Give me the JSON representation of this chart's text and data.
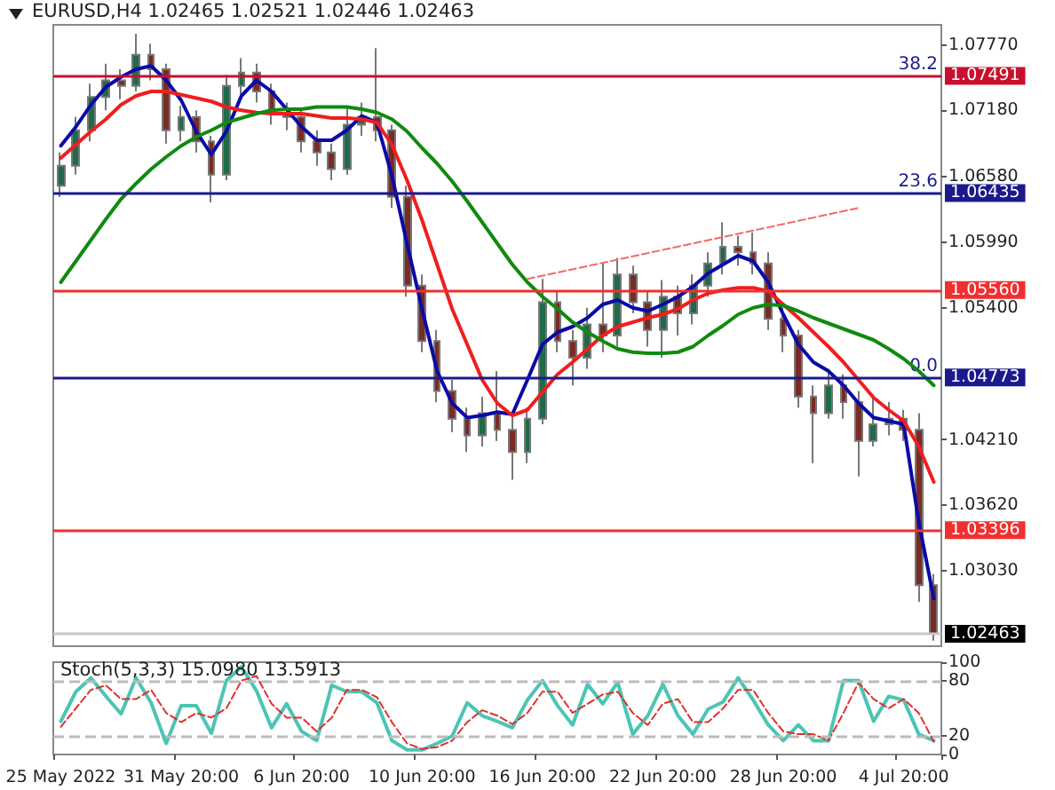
{
  "chart_data": [
    {
      "type": "candlestick",
      "title": "EURUSD,H4 1.02465 1.02521 1.02446 1.02463",
      "tick_labels": "y",
      "marker": "none",
      "categories": [
        null,
        null,
        null,
        null,
        null,
        null,
        null,
        null,
        null,
        null,
        null,
        null,
        null,
        null,
        null,
        null,
        null,
        null,
        null,
        null,
        null,
        null,
        null,
        null,
        null,
        null,
        null,
        null,
        null,
        null,
        null,
        null,
        null,
        null,
        null,
        null,
        null,
        null,
        null,
        null,
        null,
        null,
        null,
        null,
        null,
        null,
        null,
        null,
        null,
        null,
        null,
        null,
        null,
        null,
        null,
        null,
        null,
        null,
        null
      ],
      "ohlc": [
        [
          1.065,
          1.068,
          1.064,
          1.0668
        ],
        [
          1.0668,
          1.0712,
          1.066,
          1.07
        ],
        [
          1.07,
          1.0742,
          1.069,
          1.073
        ],
        [
          1.073,
          1.076,
          1.0718,
          1.0745
        ],
        [
          1.0745,
          1.0755,
          1.0728,
          1.074
        ],
        [
          1.074,
          1.0787,
          1.0735,
          1.0768
        ],
        [
          1.0768,
          1.0778,
          1.0745,
          1.0755
        ],
        [
          1.0755,
          1.076,
          1.0688,
          1.07
        ],
        [
          1.07,
          1.0722,
          1.069,
          1.0712
        ],
        [
          1.0712,
          1.0718,
          1.068,
          1.069
        ],
        [
          1.069,
          1.0695,
          1.0635,
          1.066
        ],
        [
          1.066,
          1.075,
          1.0655,
          1.074
        ],
        [
          1.074,
          1.0765,
          1.0732,
          1.0752
        ],
        [
          1.0752,
          1.076,
          1.0725,
          1.0735
        ],
        [
          1.0735,
          1.0742,
          1.0705,
          1.0715
        ],
        [
          1.0715,
          1.0725,
          1.07,
          1.0712
        ],
        [
          1.0712,
          1.0718,
          1.068,
          1.069
        ],
        [
          1.069,
          1.07,
          1.0668,
          1.068
        ],
        [
          1.068,
          1.0688,
          1.0655,
          1.0665
        ],
        [
          1.0665,
          1.072,
          1.066,
          1.0705
        ],
        [
          1.0705,
          1.0725,
          1.0695,
          1.0712
        ],
        [
          1.0712,
          1.0774,
          1.069,
          1.07
        ],
        [
          1.07,
          1.0705,
          1.063,
          1.064
        ],
        [
          1.064,
          1.065,
          1.055,
          1.056
        ],
        [
          1.056,
          1.057,
          1.05,
          1.051
        ],
        [
          1.051,
          1.052,
          1.0455,
          1.0465
        ],
        [
          1.0465,
          1.0475,
          1.0428,
          1.044
        ],
        [
          1.044,
          1.045,
          1.041,
          1.0425
        ],
        [
          1.0425,
          1.046,
          1.0415,
          1.0445
        ],
        [
          1.0445,
          1.0483,
          1.042,
          1.043
        ],
        [
          1.043,
          1.0445,
          1.0385,
          1.041
        ],
        [
          1.041,
          1.045,
          1.04,
          1.044
        ],
        [
          1.044,
          1.0566,
          1.0435,
          1.0545
        ],
        [
          1.0545,
          1.0555,
          1.05,
          1.051
        ],
        [
          1.051,
          1.052,
          1.047,
          1.0495
        ],
        [
          1.0495,
          1.054,
          1.0485,
          1.0525
        ],
        [
          1.0525,
          1.058,
          1.05,
          1.0515
        ],
        [
          1.0515,
          1.0585,
          1.0505,
          1.057
        ],
        [
          1.057,
          1.0578,
          1.0535,
          1.0545
        ],
        [
          1.0545,
          1.0555,
          1.0505,
          1.052
        ],
        [
          1.052,
          1.0565,
          1.0495,
          1.055
        ],
        [
          1.055,
          1.056,
          1.0515,
          1.0535
        ],
        [
          1.0535,
          1.057,
          1.0525,
          1.056
        ],
        [
          1.056,
          1.059,
          1.055,
          1.058
        ],
        [
          1.058,
          1.0617,
          1.057,
          1.0595
        ],
        [
          1.0595,
          1.0605,
          1.0578,
          1.059
        ],
        [
          1.059,
          1.0608,
          1.057,
          1.058
        ],
        [
          1.058,
          1.059,
          1.052,
          1.053
        ],
        [
          1.053,
          1.054,
          1.05,
          1.0515
        ],
        [
          1.0515,
          1.052,
          1.045,
          1.046
        ],
        [
          1.046,
          1.047,
          1.04,
          1.0445
        ],
        [
          1.0445,
          1.0485,
          1.044,
          1.047
        ],
        [
          1.047,
          1.048,
          1.044,
          1.0455
        ],
        [
          1.0455,
          1.0465,
          1.0388,
          1.042
        ],
        [
          1.042,
          1.0462,
          1.0415,
          1.0435
        ],
        [
          1.0435,
          1.0455,
          1.0425,
          1.044
        ],
        [
          1.044,
          1.0448,
          1.042,
          1.043
        ],
        [
          1.043,
          1.0445,
          1.0275,
          1.029
        ],
        [
          1.029,
          1.03,
          1.024,
          1.02463
        ]
      ],
      "series": [
        {
          "type": "line",
          "color": "#0a0aa8",
          "values": [
            1.0686,
            1.0703,
            1.0723,
            1.0739,
            1.0748,
            1.0755,
            1.0758,
            1.0745,
            1.0727,
            1.0699,
            1.0678,
            1.0699,
            1.0731,
            1.0745,
            1.0735,
            1.0719,
            1.0703,
            1.0691,
            1.0691,
            1.07,
            1.0713,
            1.0707,
            1.0659,
            1.0598,
            1.0539,
            1.0483,
            1.0454,
            1.0441,
            1.0443,
            1.0446,
            1.0444,
            1.0475,
            1.0507,
            1.0518,
            1.0523,
            1.0531,
            1.0543,
            1.0547,
            1.054,
            1.0537,
            1.0543,
            1.055,
            1.0559,
            1.0571,
            1.0579,
            1.0587,
            1.0582,
            1.0563,
            1.0534,
            1.0507,
            1.0491,
            1.0483,
            1.047,
            1.0454,
            1.0441,
            1.0438,
            1.0435,
            1.0347,
            1.0278
          ]
        },
        {
          "type": "line",
          "color": "#f01e1e",
          "values": [
            1.0675,
            1.0687,
            1.0699,
            1.071,
            1.0723,
            1.0731,
            1.0735,
            1.0735,
            1.0732,
            1.0729,
            1.0726,
            1.0721,
            1.0718,
            1.0716,
            1.0715,
            1.0715,
            1.0715,
            1.0713,
            1.0711,
            1.0711,
            1.071,
            1.0707,
            1.0687,
            1.0655,
            1.0619,
            1.0579,
            1.0539,
            1.0507,
            1.0475,
            1.0454,
            1.0443,
            1.0448,
            1.0464,
            1.048,
            1.0491,
            1.0503,
            1.0515,
            1.0523,
            1.0527,
            1.0531,
            1.0534,
            1.0539,
            1.0547,
            1.0553,
            1.0556,
            1.0558,
            1.0558,
            1.0555,
            1.0543,
            1.0531,
            1.0518,
            1.0505,
            1.0491,
            1.0475,
            1.0459,
            1.0448,
            1.0438,
            1.0415,
            1.0383
          ]
        },
        {
          "type": "line",
          "color": "#108a10",
          "values": [
            1.0563,
            1.0582,
            1.0601,
            1.062,
            1.0638,
            1.0652,
            1.0665,
            1.0676,
            1.0686,
            1.0694,
            1.07,
            1.0707,
            1.0711,
            1.0715,
            1.0718,
            1.0719,
            1.0719,
            1.0721,
            1.0721,
            1.0721,
            1.0719,
            1.0716,
            1.071,
            1.0699,
            1.0684,
            1.067,
            1.0654,
            1.0636,
            1.0617,
            1.0598,
            1.0579,
            1.0563,
            1.055,
            1.0539,
            1.0527,
            1.0518,
            1.051,
            1.0503,
            1.05,
            1.0499,
            1.0499,
            1.05,
            1.0505,
            1.0515,
            1.0524,
            1.0534,
            1.054,
            1.0543,
            1.0542,
            1.0537,
            1.0531,
            1.0526,
            1.0521,
            1.0516,
            1.0511,
            1.0503,
            1.0494,
            1.0483,
            1.047
          ]
        },
        {
          "type": "line",
          "color": "#f06a6a",
          "line_style": "dashed",
          "values": [
            null,
            null,
            null,
            null,
            null,
            null,
            null,
            null,
            null,
            null,
            null,
            null,
            null,
            null,
            null,
            null,
            null,
            null,
            null,
            null,
            null,
            null,
            null,
            null,
            null,
            null,
            null,
            null,
            null,
            null,
            null,
            1.0566,
            null,
            null,
            null,
            null,
            null,
            null,
            null,
            null,
            null,
            null,
            null,
            null,
            null,
            null,
            null,
            null,
            null,
            null,
            null,
            null,
            null,
            1.063,
            null,
            null,
            null,
            null,
            null
          ]
        }
      ],
      "ylim": [
        1.0235,
        1.0795
      ],
      "yticks": [
        {
          "value": 1.0303,
          "label": "1.03030"
        },
        {
          "value": 1.0362,
          "label": "1.03620"
        },
        {
          "value": 1.0421,
          "label": "1.04210"
        },
        {
          "value": 1.054,
          "label": "1.05400"
        },
        {
          "value": 1.0599,
          "label": "1.05990"
        },
        {
          "value": 1.0658,
          "label": "1.06580"
        },
        {
          "value": 1.0718,
          "label": "1.07180"
        },
        {
          "value": 1.0777,
          "label": "1.07770"
        }
      ],
      "ref_lines": [
        {
          "axis": "y",
          "value": 1.07491,
          "label": "1.07491",
          "color": "#c8102e"
        },
        {
          "axis": "y",
          "value": 1.06435,
          "label": "1.06435",
          "color": "#1a1a8c"
        },
        {
          "axis": "y",
          "value": 1.0556,
          "label": "1.05560",
          "color": "#f03030"
        },
        {
          "axis": "y",
          "value": 1.04773,
          "label": "1.04773",
          "color": "#1a1a8c"
        },
        {
          "axis": "y",
          "value": 1.03396,
          "label": "1.03396",
          "color": "#f03030"
        },
        {
          "axis": "y",
          "value": 1.02463,
          "label": "1.02463",
          "color": "#c8c8c8"
        }
      ],
      "annotations": [
        {
          "text": "38.2",
          "y": 1.07491
        },
        {
          "text": "23.6",
          "y": 1.06435
        },
        {
          "text": "0.0",
          "y": 1.04773
        }
      ]
    },
    {
      "type": "line",
      "title": "Stoch(5,3,3) 15.0980 13.5913",
      "marker": "none",
      "categories": [
        "25 May 2022",
        null,
        null,
        null,
        null,
        null,
        null,
        null,
        "31 May 20:00",
        null,
        null,
        null,
        null,
        null,
        null,
        null,
        "6 Jun 20:00",
        null,
        null,
        null,
        null,
        null,
        null,
        null,
        "10 Jun 20:00",
        null,
        null,
        null,
        null,
        null,
        null,
        null,
        "16 Jun 20:00",
        null,
        null,
        null,
        null,
        null,
        null,
        null,
        "22 Jun 20:00",
        null,
        null,
        null,
        null,
        null,
        null,
        null,
        "28 Jun 20:00",
        null,
        null,
        null,
        null,
        null,
        null,
        null,
        "4 Jul 20:00",
        null,
        null
      ],
      "series": [
        {
          "color": "#4cc4b4",
          "values": [
            36,
            68,
            83,
            63,
            44,
            83,
            56,
            12,
            53,
            53,
            23,
            80,
            95,
            69,
            29,
            55,
            25,
            15,
            75,
            68,
            68,
            56,
            15,
            5,
            5,
            12,
            20,
            56,
            42,
            36,
            29,
            59,
            80,
            53,
            32,
            76,
            55,
            78,
            22,
            42,
            76,
            42,
            22,
            49,
            57,
            83,
            59,
            32,
            15,
            32,
            15,
            15,
            80,
            80,
            36,
            63,
            59,
            22,
            15
          ]
        },
        {
          "color": "#e03030",
          "line_style": "dashed",
          "values": [
            30,
            50,
            70,
            75,
            60,
            60,
            70,
            45,
            35,
            45,
            40,
            50,
            80,
            85,
            55,
            40,
            40,
            25,
            40,
            70,
            70,
            62,
            35,
            12,
            6,
            8,
            15,
            35,
            48,
            42,
            33,
            45,
            68,
            68,
            45,
            55,
            65,
            68,
            45,
            32,
            55,
            60,
            35,
            35,
            50,
            70,
            70,
            45,
            25,
            22,
            22,
            15,
            45,
            78,
            60,
            50,
            60,
            45,
            14
          ]
        }
      ],
      "ylim": [
        0,
        100
      ],
      "yticks": [
        0,
        20,
        80,
        100
      ],
      "ref_lines": [
        {
          "axis": "y",
          "value": 20,
          "color": "#bbbbbb",
          "line_style": "dashed"
        },
        {
          "axis": "y",
          "value": 80,
          "color": "#bbbbbb",
          "line_style": "dashed"
        }
      ]
    }
  ]
}
